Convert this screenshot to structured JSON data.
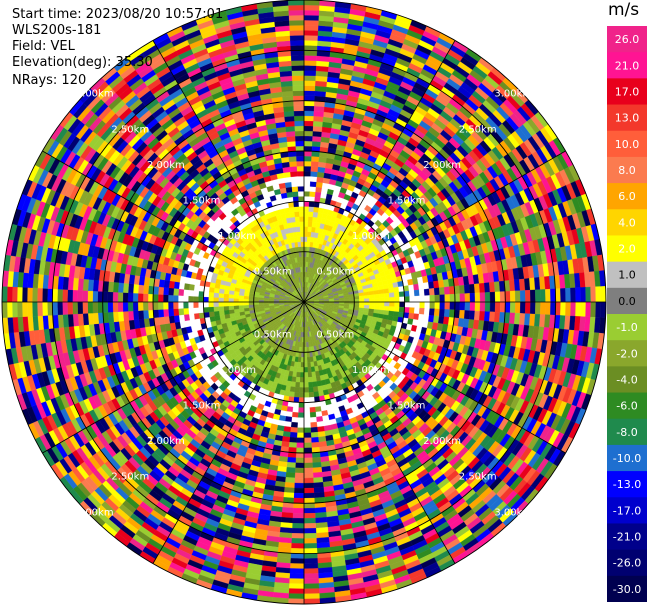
{
  "header": {
    "start_time": "Start time: 2023/08/20 10:57:01",
    "instrument": "WLS200s-181",
    "field": "Field: VEL",
    "elevation": "Elevation(deg): 35.30",
    "nrays": "NRays: 120"
  },
  "colorbar": {
    "unit": "m/s",
    "levels": [
      {
        "label": "26.0",
        "color": "#f0238a"
      },
      {
        "label": "21.0",
        "color": "#ff1493"
      },
      {
        "label": "17.0",
        "color": "#e8001c"
      },
      {
        "label": "13.0",
        "color": "#f3382b"
      },
      {
        "label": "10.0",
        "color": "#ff5e3a"
      },
      {
        "label": "8.0",
        "color": "#fb7b4f"
      },
      {
        "label": "6.0",
        "color": "#ffa500"
      },
      {
        "label": "4.0",
        "color": "#ffd500"
      },
      {
        "label": "2.0",
        "color": "#ffff00"
      },
      {
        "label": "1.0",
        "color": "#c0c0c0"
      },
      {
        "label": "0.0",
        "color": "#7f7f7f"
      },
      {
        "label": "-1.0",
        "color": "#9acd32"
      },
      {
        "label": "-2.0",
        "color": "#8aa72c"
      },
      {
        "label": "-4.0",
        "color": "#6b8e23"
      },
      {
        "label": "-6.0",
        "color": "#2e8b22"
      },
      {
        "label": "-8.0",
        "color": "#1f8a4d"
      },
      {
        "label": "-10.0",
        "color": "#1e6fd0"
      },
      {
        "label": "-13.0",
        "color": "#0000ff"
      },
      {
        "label": "-17.0",
        "color": "#0000cd"
      },
      {
        "label": "-21.0",
        "color": "#00008b"
      },
      {
        "label": "-26.0",
        "color": "#000070"
      },
      {
        "label": "-30.0",
        "color": "#000050"
      }
    ]
  },
  "range_rings": {
    "unit": "km",
    "labels": [
      "0.50km",
      "1.00km",
      "1.50km",
      "2.00km",
      "2.50km",
      "3.00km"
    ]
  }
}
